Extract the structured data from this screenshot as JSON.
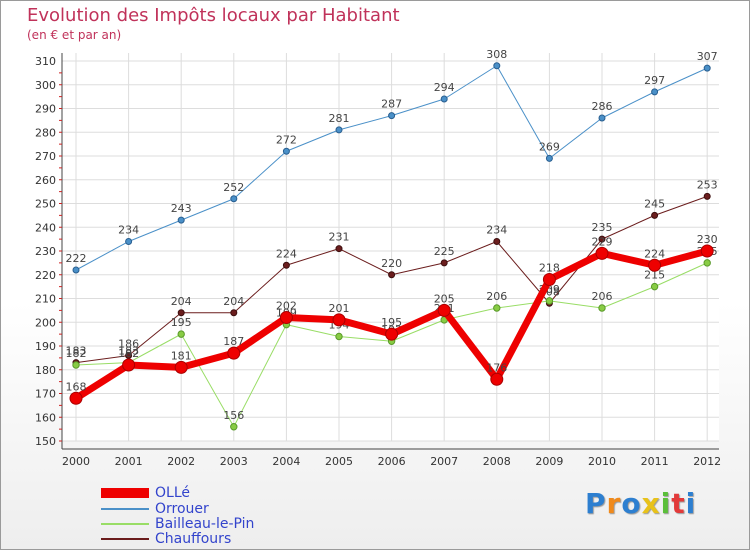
{
  "chart_data": {
    "type": "line",
    "title": "Evolution des Impôts locaux par Habitant",
    "subtitle": "(en € et par an)",
    "categories": [
      "2000",
      "2001",
      "2002",
      "2003",
      "2004",
      "2005",
      "2006",
      "2007",
      "2008",
      "2009",
      "2010",
      "2011",
      "2012"
    ],
    "ylim": [
      150,
      310
    ],
    "yticks": [
      150,
      160,
      170,
      180,
      190,
      200,
      210,
      220,
      230,
      240,
      250,
      260,
      270,
      280,
      290,
      300,
      310
    ],
    "grid": true,
    "legend_position": "bottom-left",
    "series": [
      {
        "name": "Orrouer",
        "color": "#4a90c8",
        "values": [
          222,
          234,
          243,
          252,
          272,
          281,
          287,
          294,
          308,
          269,
          286,
          297,
          307
        ]
      },
      {
        "name": "Chauffours",
        "color": "#6b1d1d",
        "values": [
          183,
          186,
          204,
          204,
          224,
          231,
          220,
          225,
          234,
          208,
          235,
          245,
          253
        ]
      },
      {
        "name": "Bailleau-le-Pin",
        "color": "#99dd66",
        "values": [
          182,
          183,
          195,
          156,
          199,
          194,
          192,
          201,
          206,
          209,
          206,
          215,
          225
        ]
      },
      {
        "name": "OLLé",
        "color": "#ee0000",
        "values": [
          168,
          182,
          181,
          187,
          202,
          201,
          195,
          205,
          176,
          218,
          229,
          224,
          230
        ]
      }
    ],
    "legend": [
      "OLLé",
      "Orrouer",
      "Bailleau-le-Pin",
      "Chauffours"
    ]
  },
  "logo": {
    "letters": [
      {
        "ch": "P",
        "color": "#2d7fd0"
      },
      {
        "ch": "r",
        "color": "#f08a1c"
      },
      {
        "ch": "o",
        "color": "#2d7fd0"
      },
      {
        "ch": "x",
        "color": "#e8c21a"
      },
      {
        "ch": "i",
        "color": "#5bbf3a"
      },
      {
        "ch": "t",
        "color": "#e23a3a"
      },
      {
        "ch": "i",
        "color": "#2d7fd0"
      }
    ]
  }
}
